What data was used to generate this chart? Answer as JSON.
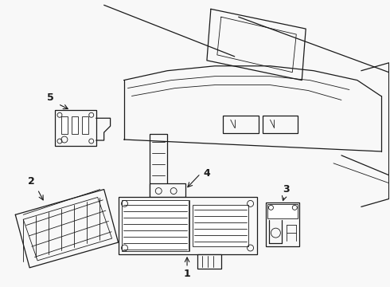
{
  "background_color": "#f8f8f8",
  "line_color": "#1a1a1a",
  "label_color": "#111111",
  "fig_width": 4.9,
  "fig_height": 3.6,
  "dpi": 100,
  "label_fontsize": 9,
  "thin_lw": 0.6,
  "med_lw": 0.9,
  "thick_lw": 1.2
}
